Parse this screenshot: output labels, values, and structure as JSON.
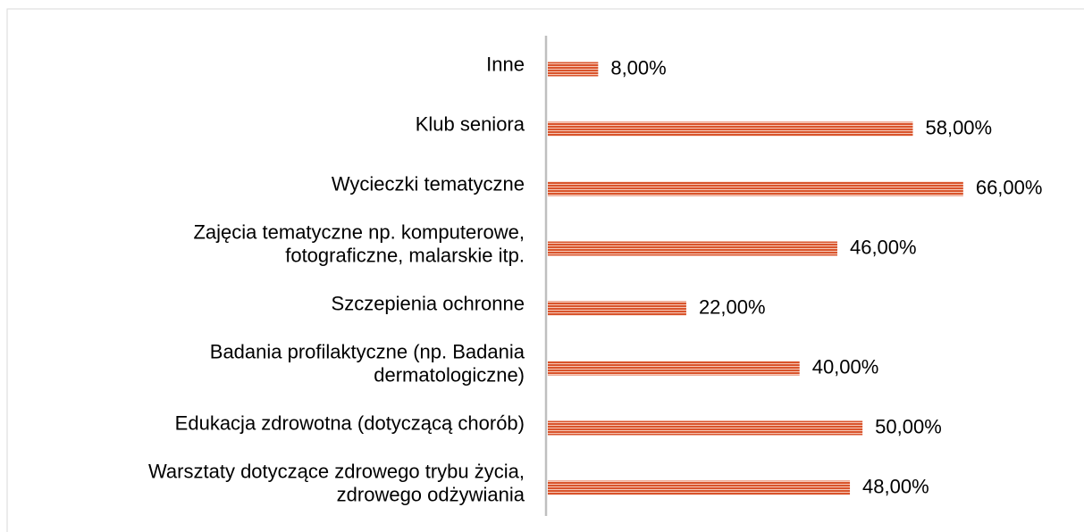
{
  "chart_data": {
    "type": "barh",
    "categories": [
      "Inne",
      "Klub seniora",
      "Wycieczki tematyczne",
      "Zajęcia tematyczne np. komputerowe,\nfotograficzne, malarskie itp.",
      "Szczepienia ochronne",
      "Badania profilaktyczne (np. Badania\ndermatologiczne)",
      "Edukacja zdrowotna (dotyczącą chorób)",
      "Warsztaty dotyczące zdrowego trybu życia,\nzdrowego odżywiania"
    ],
    "values": [
      8,
      58,
      66,
      46,
      22,
      40,
      50,
      48
    ],
    "value_labels": [
      "8,00%",
      "58,00%",
      "66,00%",
      "46,00%",
      "22,00%",
      "40,00%",
      "50,00%",
      "48,00%"
    ],
    "color": "#d9542c",
    "xlim": [
      0,
      70
    ]
  }
}
